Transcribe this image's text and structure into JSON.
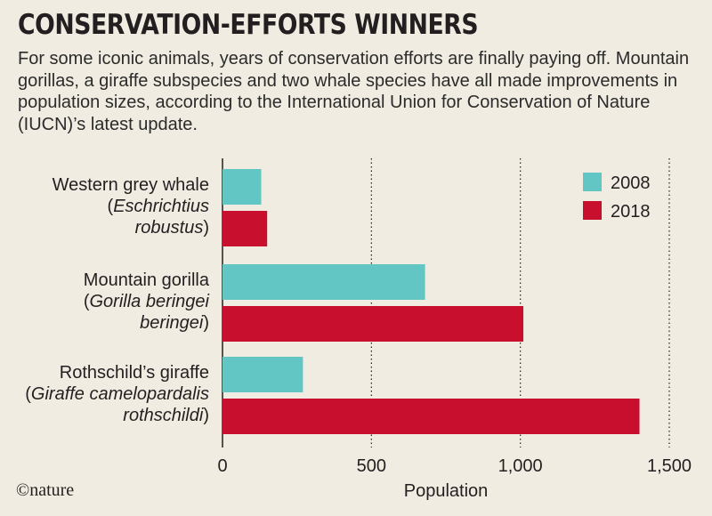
{
  "header": {
    "title": "CONSERVATION-EFFORTS WINNERS",
    "subtitle": "For some iconic animals, years of conservation efforts are finally paying off. Mountain gorillas, a giraffe subspecies and two whale species have all made improvements in population sizes, according to the International Union for Conservation of Nature (IUCN)’s latest update."
  },
  "credit": "©nature",
  "chart_data": {
    "type": "bar",
    "orientation": "horizontal",
    "categories": [
      {
        "common": "Western grey whale",
        "scientific_lines": [
          "(Eschrichtius",
          "robustus)"
        ]
      },
      {
        "common": "Mountain gorilla",
        "scientific_lines": [
          "(Gorilla beringei",
          "beringei)"
        ]
      },
      {
        "common": "Rothschild’s giraffe",
        "scientific_lines": [
          "(Giraffe camelopardalis",
          "rothschildi)"
        ]
      }
    ],
    "series": [
      {
        "name": "2008",
        "color": "#62c6c4",
        "values": [
          130,
          680,
          270
        ]
      },
      {
        "name": "2018",
        "color": "#c8102e",
        "values": [
          150,
          1010,
          1400
        ]
      }
    ],
    "xlabel": "Population",
    "xlim": [
      0,
      1500
    ],
    "xticks": [
      0,
      500,
      1000,
      1500
    ],
    "xtick_labels": [
      "0",
      "500",
      "1,000",
      "1,500"
    ],
    "grid": "vertical dotted",
    "legend_position": "top-right"
  }
}
